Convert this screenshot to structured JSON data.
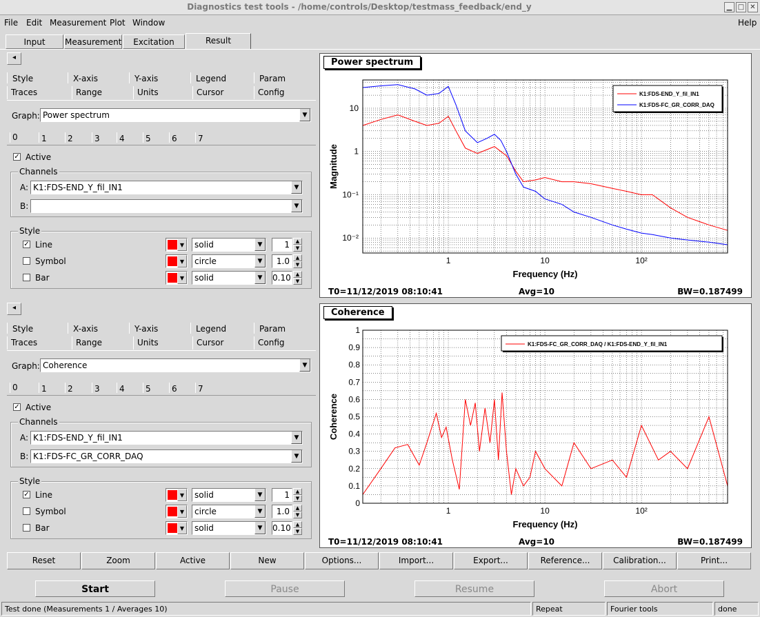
{
  "window": {
    "title": "Diagnostics test tools - /home/controls/Desktop/testmass_feedback/end_y",
    "min": "▁",
    "max": "□",
    "close": "✕"
  },
  "menu": {
    "file": "File",
    "edit": "Edit",
    "measurement": "Measurement",
    "plot": "Plot",
    "window": "Window",
    "help": "Help"
  },
  "tabs": [
    "Input",
    "Measurement",
    "Excitation",
    "Result"
  ],
  "colors": {
    "red": "#ff0000",
    "blue": "#0000ff",
    "bg": "#d9d9d9"
  },
  "panels": [
    {
      "collapse": "◂",
      "tabs_row1": [
        "Style",
        "X-axis",
        "Y-axis",
        "Legend",
        "Param"
      ],
      "tabs_row2": [
        "Traces",
        "Range",
        "Units",
        "Cursor",
        "Config"
      ],
      "graph_label": "Graph:",
      "graph_value": "Power spectrum",
      "trace_tabs": [
        "0",
        "1",
        "2",
        "3",
        "4",
        "5",
        "6",
        "7"
      ],
      "active_label": "Active",
      "channels_label": "Channels",
      "a_label": "A:",
      "a_value": "K1:FDS-END_Y_fil_IN1",
      "b_label": "B:",
      "b_value": "",
      "style_label": "Style",
      "style_rows": [
        {
          "label": "Line",
          "checked": "✓",
          "type": "solid",
          "size": "1"
        },
        {
          "label": "Symbol",
          "checked": "",
          "type": "circle",
          "size": "1.0"
        },
        {
          "label": "Bar",
          "checked": "",
          "type": "solid",
          "size": "0.10"
        }
      ]
    },
    {
      "collapse": "◂",
      "tabs_row1": [
        "Style",
        "X-axis",
        "Y-axis",
        "Legend",
        "Param"
      ],
      "tabs_row2": [
        "Traces",
        "Range",
        "Units",
        "Cursor",
        "Config"
      ],
      "graph_label": "Graph:",
      "graph_value": "Coherence",
      "trace_tabs": [
        "0",
        "1",
        "2",
        "3",
        "4",
        "5",
        "6",
        "7"
      ],
      "active_label": "Active",
      "channels_label": "Channels",
      "a_label": "A:",
      "a_value": "K1:FDS-END_Y_fil_IN1",
      "b_label": "B:",
      "b_value": "K1:FDS-FC_GR_CORR_DAQ",
      "style_label": "Style",
      "style_rows": [
        {
          "label": "Line",
          "checked": "✓",
          "type": "solid",
          "size": "1"
        },
        {
          "label": "Symbol",
          "checked": "",
          "type": "circle",
          "size": "1.0"
        },
        {
          "label": "Bar",
          "checked": "",
          "type": "solid",
          "size": "0.10"
        }
      ]
    }
  ],
  "plots": [
    {
      "title": "Power spectrum",
      "t0": "T0=11/12/2019 08:10:41",
      "avg": "Avg=10",
      "bw": "BW=0.187499"
    },
    {
      "title": "Coherence",
      "t0": "T0=11/12/2019 08:10:41",
      "avg": "Avg=10",
      "bw": "BW=0.187499"
    }
  ],
  "chart_data": [
    {
      "type": "line",
      "title": "Power spectrum",
      "xlabel": "Frequency (Hz)",
      "ylabel": "Magnitude",
      "xscale": "log",
      "yscale": "log",
      "xlim": [
        0.13,
        780
      ],
      "ylim": [
        0.0045,
        45
      ],
      "x_ticks": [
        "1",
        "10",
        "10²"
      ],
      "y_ticks": [
        "10⁻²",
        "10⁻¹",
        "1",
        "10"
      ],
      "legend": "top-right",
      "grid": true,
      "series": [
        {
          "name": "K1:FDS-END_Y_fil_IN1",
          "color": "#ff0000",
          "x": [
            0.13,
            0.2,
            0.3,
            0.45,
            0.6,
            0.8,
            1,
            1.2,
            1.5,
            2,
            2.5,
            3,
            3.5,
            4,
            5,
            6,
            8,
            10,
            15,
            20,
            30,
            50,
            70,
            100,
            130,
            200,
            300,
            500,
            780
          ],
          "y": [
            4,
            5.5,
            7,
            5,
            4,
            4.5,
            6.5,
            3,
            1.2,
            0.9,
            1.1,
            1.3,
            1,
            0.8,
            0.35,
            0.2,
            0.22,
            0.25,
            0.2,
            0.2,
            0.18,
            0.14,
            0.12,
            0.1,
            0.1,
            0.05,
            0.03,
            0.02,
            0.015
          ]
        },
        {
          "name": "K1:FDS-FC_GR_CORR_DAQ",
          "color": "#0000ff",
          "x": [
            0.13,
            0.2,
            0.3,
            0.45,
            0.6,
            0.8,
            1,
            1.2,
            1.5,
            2,
            2.5,
            3,
            3.5,
            4,
            5,
            6,
            8,
            10,
            15,
            20,
            30,
            50,
            70,
            100,
            130,
            200,
            300,
            500,
            780
          ],
          "y": [
            30,
            33,
            35,
            28,
            20,
            22,
            32,
            12,
            3,
            1.6,
            2,
            2.5,
            1.8,
            1,
            0.3,
            0.15,
            0.12,
            0.08,
            0.06,
            0.04,
            0.03,
            0.02,
            0.016,
            0.013,
            0.012,
            0.01,
            0.009,
            0.008,
            0.007
          ]
        }
      ]
    },
    {
      "type": "line",
      "title": "Coherence",
      "xlabel": "Frequency (Hz)",
      "ylabel": "Coherence",
      "xscale": "log",
      "xlim": [
        0.13,
        780
      ],
      "ylim": [
        0,
        1
      ],
      "x_ticks": [
        "1",
        "10",
        "10²"
      ],
      "y_ticks": [
        "0",
        "0.1",
        "0.2",
        "0.3",
        "0.4",
        "0.5",
        "0.6",
        "0.7",
        "0.8",
        "0.9",
        "1"
      ],
      "legend": "top-right",
      "grid": true,
      "series": [
        {
          "name": "K1:FDS-FC_GR_CORR_DAQ / K1:FDS-END_Y_fil_IN1",
          "color": "#ff0000",
          "x": [
            0.13,
            0.2,
            0.28,
            0.38,
            0.5,
            0.6,
            0.75,
            0.85,
            0.95,
            1.1,
            1.3,
            1.5,
            1.7,
            1.9,
            2.1,
            2.4,
            2.7,
            3,
            3.3,
            3.6,
            4,
            4.5,
            5,
            6,
            7,
            8,
            10,
            15,
            20,
            30,
            50,
            70,
            100,
            150,
            200,
            300,
            500,
            780
          ],
          "y": [
            0.05,
            0.2,
            0.32,
            0.34,
            0.22,
            0.35,
            0.52,
            0.38,
            0.44,
            0.25,
            0.08,
            0.6,
            0.45,
            0.58,
            0.3,
            0.55,
            0.35,
            0.6,
            0.25,
            0.64,
            0.3,
            0.05,
            0.2,
            0.1,
            0.15,
            0.3,
            0.2,
            0.1,
            0.35,
            0.2,
            0.25,
            0.15,
            0.45,
            0.25,
            0.3,
            0.2,
            0.5,
            0.1
          ]
        }
      ]
    }
  ],
  "buttons": [
    "Reset",
    "Zoom",
    "Active",
    "New",
    "Options...",
    "Import...",
    "Export...",
    "Reference...",
    "Calibration...",
    "Print..."
  ],
  "run_buttons": [
    "Start",
    "Pause",
    "Resume",
    "Abort"
  ],
  "status": {
    "msg": "Test done (Measurements 1 / Averages 10)",
    "mode": "Repeat",
    "tool": "Fourier tools",
    "state": "done"
  }
}
